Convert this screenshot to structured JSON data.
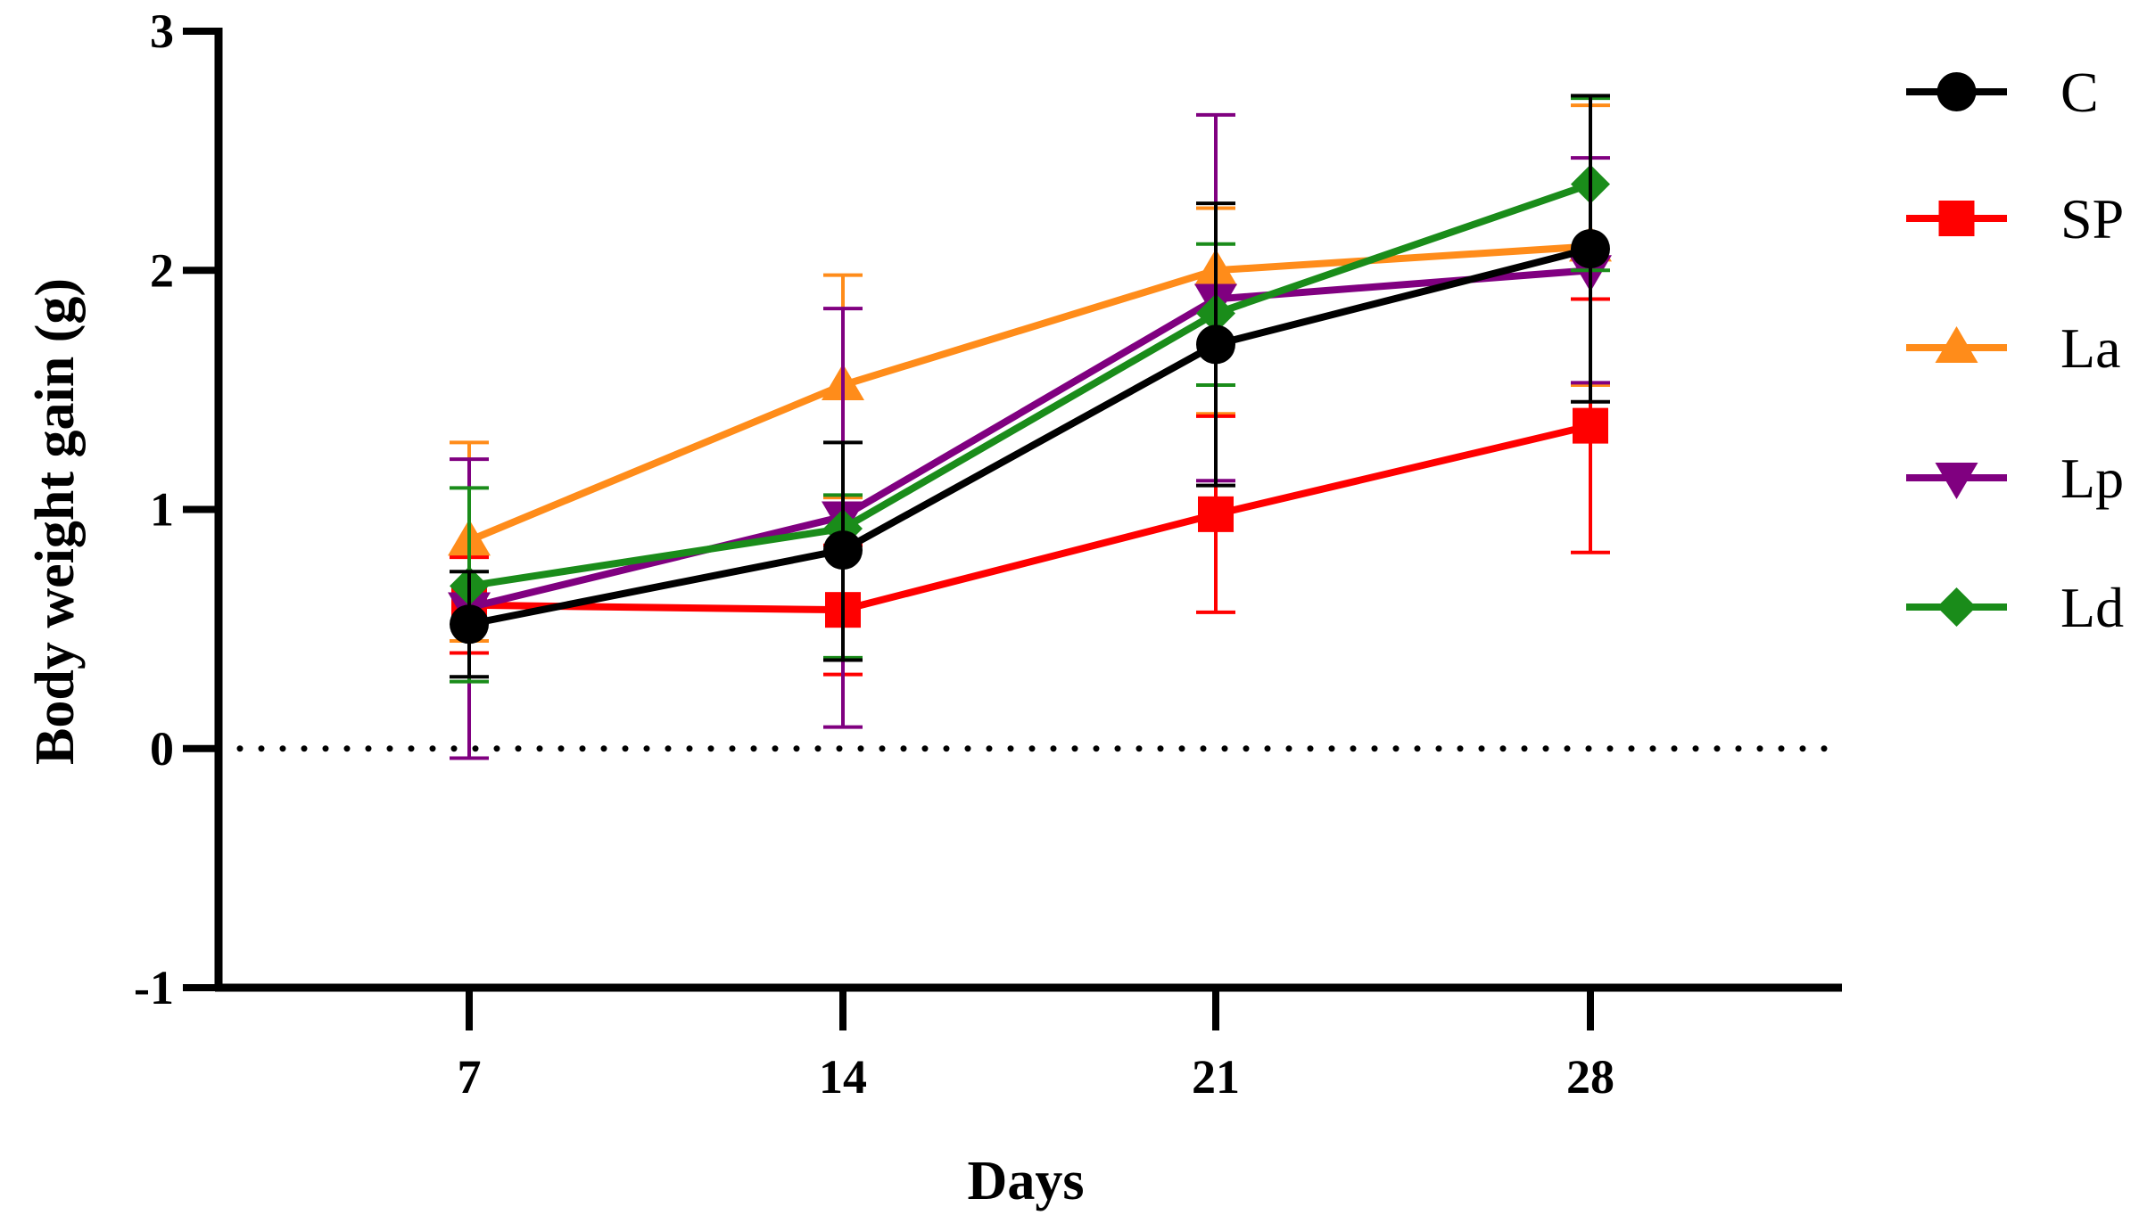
{
  "chart_data": {
    "type": "line",
    "xlabel": "Days",
    "ylabel": "Body weight gain (g)",
    "x": [
      7,
      14,
      21,
      28
    ],
    "x_tick_labels": [
      "7",
      "14",
      "21",
      "28"
    ],
    "ylim": [
      -1,
      3
    ],
    "y_ticks": [
      -1,
      0,
      1,
      2,
      3
    ],
    "y_tick_labels": [
      "-1",
      "0",
      "1",
      "2",
      "3"
    ],
    "reference_line": {
      "y": 0,
      "style": "dotted"
    },
    "legend_position": "right",
    "grid": false,
    "error_bars": true,
    "series": [
      {
        "name": "C",
        "color": "#000000",
        "marker": "circle",
        "values": [
          0.52,
          0.83,
          1.69,
          2.09
        ],
        "err_low": [
          0.3,
          0.37,
          1.1,
          1.45
        ],
        "err_high": [
          0.74,
          1.28,
          2.28,
          2.73
        ]
      },
      {
        "name": "SP",
        "color": "#ff0000",
        "marker": "square",
        "values": [
          0.6,
          0.58,
          0.98,
          1.35
        ],
        "err_low": [
          0.4,
          0.31,
          0.57,
          0.82
        ],
        "err_high": [
          0.8,
          0.85,
          1.39,
          1.88
        ]
      },
      {
        "name": "La",
        "color": "#ff8c1a",
        "marker": "triangle-up",
        "values": [
          0.87,
          1.52,
          2.0,
          2.1
        ],
        "err_low": [
          0.45,
          1.05,
          1.4,
          1.52
        ],
        "err_high": [
          1.28,
          1.98,
          2.26,
          2.69
        ]
      },
      {
        "name": "Lp",
        "color": "#800080",
        "marker": "triangle-down",
        "values": [
          0.59,
          0.97,
          1.88,
          2.0
        ],
        "err_low": [
          -0.04,
          0.09,
          1.12,
          1.53
        ],
        "err_high": [
          1.21,
          1.84,
          2.65,
          2.47
        ]
      },
      {
        "name": "Ld",
        "color": "#1a8c1a",
        "marker": "diamond",
        "values": [
          0.68,
          0.92,
          1.82,
          2.36
        ],
        "err_low": [
          0.28,
          0.38,
          1.52,
          2.0
        ],
        "err_high": [
          1.09,
          1.06,
          2.11,
          2.72
        ]
      }
    ]
  }
}
